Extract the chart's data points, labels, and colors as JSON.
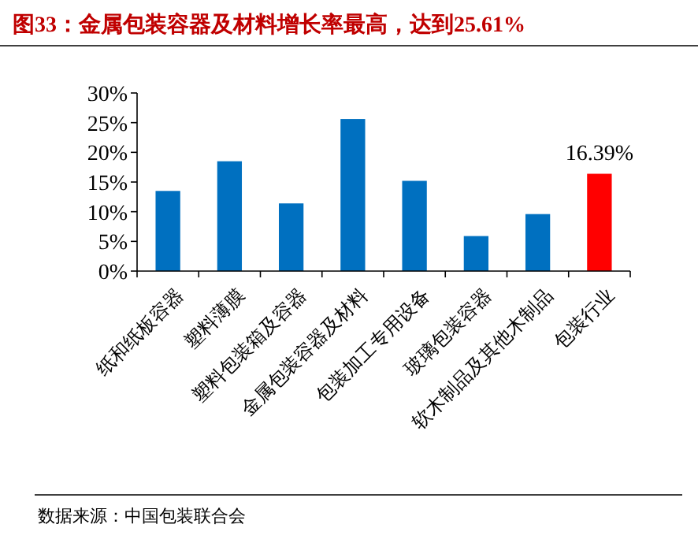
{
  "chart_data": {
    "type": "bar",
    "title": "图33：金属包装容器及材料增长率最高，达到25.61%",
    "categories": [
      "纸和纸板容器",
      "塑料薄膜",
      "塑料包装箱及容器",
      "金属包装容器及材料",
      "包装加工专用设备",
      "玻璃包装容器",
      "软木制品及其他木制品",
      "包装行业"
    ],
    "values": [
      13.5,
      18.5,
      11.4,
      25.61,
      15.2,
      5.9,
      9.6,
      16.39
    ],
    "colors": [
      "#0070c0",
      "#0070c0",
      "#0070c0",
      "#0070c0",
      "#0070c0",
      "#0070c0",
      "#0070c0",
      "#ff0000"
    ],
    "value_labels": [
      null,
      null,
      null,
      null,
      null,
      null,
      null,
      "16.39%"
    ],
    "ylim": [
      0,
      30
    ],
    "yticks": [
      {
        "value": 0,
        "label": "0%"
      },
      {
        "value": 5,
        "label": "5%"
      },
      {
        "value": 10,
        "label": "10%"
      },
      {
        "value": 15,
        "label": "15%"
      },
      {
        "value": 20,
        "label": "20%"
      },
      {
        "value": 25,
        "label": "25%"
      },
      {
        "value": 30,
        "label": "30%"
      }
    ],
    "grid": false,
    "annotations": [
      "数据来源：中国包装联合会"
    ]
  }
}
